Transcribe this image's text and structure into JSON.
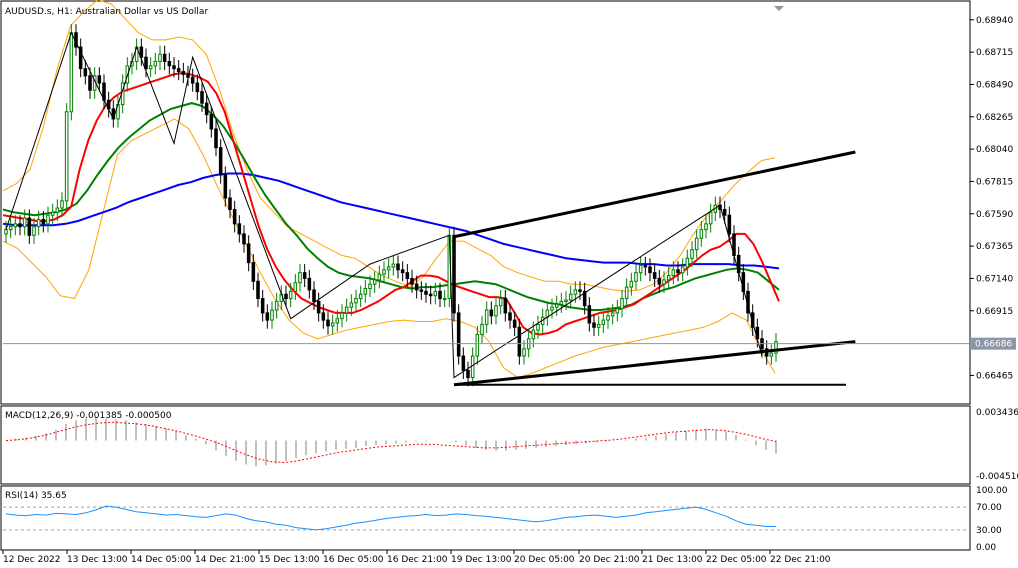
{
  "chart_data": [
    {
      "panel": "price",
      "type": "candlestick",
      "title": "AUDUSD.s, H1:  Australian Dollar vs US Dollar",
      "ylim": [
        0.6628,
        0.6905
      ],
      "y_ticks": [
        "0.68940",
        "0.68715",
        "0.68490",
        "0.68265",
        "0.68040",
        "0.67815",
        "0.67590",
        "0.67365",
        "0.67140",
        "0.66915",
        "0.66690",
        "0.66465"
      ],
      "current_price": "0.66686",
      "current_value": 0.66686,
      "colors": {
        "bull": "#008000",
        "bear": "#000000",
        "ma_fast": "#ff0000",
        "ma_mid": "#008000",
        "ma_slow": "#0000ff",
        "bands": "#ffa500",
        "trendline": "#000000",
        "price_line": "#8c96a6"
      },
      "close": [
        0.6748,
        0.675,
        0.6752,
        0.675,
        0.6756,
        0.6744,
        0.675,
        0.6755,
        0.6752,
        0.6758,
        0.676,
        0.6763,
        0.6768,
        0.683,
        0.6885,
        0.6875,
        0.686,
        0.6855,
        0.6845,
        0.6855,
        0.685,
        0.6838,
        0.6832,
        0.6825,
        0.6835,
        0.685,
        0.6862,
        0.6865,
        0.6875,
        0.6868,
        0.686,
        0.6862,
        0.6865,
        0.687,
        0.6865,
        0.6862,
        0.686,
        0.6858,
        0.6856,
        0.6854,
        0.685,
        0.6844,
        0.6836,
        0.6828,
        0.6818,
        0.6805,
        0.6786,
        0.677,
        0.6762,
        0.6752,
        0.6745,
        0.6738,
        0.6725,
        0.6712,
        0.67,
        0.669,
        0.6685,
        0.6692,
        0.6698,
        0.6703,
        0.67,
        0.6705,
        0.6711,
        0.6718,
        0.6714,
        0.6706,
        0.6698,
        0.669,
        0.6685,
        0.6681,
        0.6683,
        0.6686,
        0.669,
        0.6694,
        0.6697,
        0.67,
        0.6703,
        0.6707,
        0.671,
        0.6713,
        0.6717,
        0.672,
        0.6722,
        0.6724,
        0.672,
        0.6718,
        0.6714,
        0.671,
        0.6706,
        0.6705,
        0.6703,
        0.6702,
        0.6705,
        0.67,
        0.67,
        0.6744,
        0.669,
        0.666,
        0.665,
        0.6645,
        0.666,
        0.6675,
        0.6682,
        0.6692,
        0.6688,
        0.6695,
        0.67,
        0.669,
        0.6685,
        0.668,
        0.666,
        0.6665,
        0.6672,
        0.6678,
        0.6682,
        0.6687,
        0.6692,
        0.6694,
        0.6696,
        0.6698,
        0.6699,
        0.6703,
        0.6706,
        0.6705,
        0.6695,
        0.6683,
        0.668,
        0.6682,
        0.6685,
        0.6688,
        0.669,
        0.6693,
        0.67,
        0.6708,
        0.6712,
        0.6718,
        0.6723,
        0.6722,
        0.6718,
        0.6714,
        0.671,
        0.6713,
        0.6716,
        0.672,
        0.6718,
        0.6722,
        0.6728,
        0.6734,
        0.6742,
        0.6748,
        0.6752,
        0.676,
        0.6765,
        0.6762,
        0.6758,
        0.6745,
        0.673,
        0.6718,
        0.6705,
        0.669,
        0.668,
        0.6672,
        0.6665,
        0.666,
        0.6662,
        0.667
      ],
      "ma_fast": [
        0.6758,
        0.6757,
        0.6756,
        0.6755,
        0.6754,
        0.6754,
        0.6755,
        0.6758,
        0.6764,
        0.679,
        0.681,
        0.6824,
        0.6834,
        0.684,
        0.6844,
        0.6846,
        0.6848,
        0.685,
        0.6852,
        0.6854,
        0.6856,
        0.6857,
        0.6856,
        0.6854,
        0.6851,
        0.6843,
        0.683,
        0.681,
        0.679,
        0.677,
        0.675,
        0.6734,
        0.6722,
        0.6713,
        0.6706,
        0.67,
        0.6697,
        0.6694,
        0.6692,
        0.669,
        0.669,
        0.669,
        0.6692,
        0.6695,
        0.6698,
        0.6702,
        0.6706,
        0.6708,
        0.6712,
        0.6716,
        0.6716,
        0.6715,
        0.6712,
        0.6709,
        0.6707,
        0.6705,
        0.6703,
        0.6701,
        0.6701,
        0.67,
        0.669,
        0.668,
        0.6676,
        0.6675,
        0.6676,
        0.6678,
        0.6682,
        0.6684,
        0.6686,
        0.6688,
        0.669,
        0.6691,
        0.6692,
        0.6694,
        0.6696,
        0.67,
        0.6704,
        0.6708,
        0.6712,
        0.6716,
        0.672,
        0.6725,
        0.673,
        0.6734,
        0.6736,
        0.674,
        0.6745,
        0.6745,
        0.6738,
        0.6726,
        0.6712,
        0.6698
      ],
      "ma_mid": [
        0.6762,
        0.676,
        0.6759,
        0.6758,
        0.6759,
        0.676,
        0.6762,
        0.6766,
        0.6775,
        0.6786,
        0.6796,
        0.6805,
        0.6812,
        0.6818,
        0.6824,
        0.6828,
        0.6832,
        0.6834,
        0.6836,
        0.6834,
        0.6828,
        0.682,
        0.6809,
        0.6797,
        0.6784,
        0.6772,
        0.6762,
        0.6752,
        0.6744,
        0.6735,
        0.6728,
        0.6722,
        0.6718,
        0.6716,
        0.6715,
        0.6714,
        0.6712,
        0.671,
        0.6708,
        0.6707,
        0.6708,
        0.6708,
        0.6709,
        0.671,
        0.6711,
        0.6712,
        0.6711,
        0.671,
        0.6707,
        0.6704,
        0.6701,
        0.6699,
        0.6697,
        0.6696,
        0.6694,
        0.6693,
        0.6692,
        0.6692,
        0.6693,
        0.6694,
        0.6696,
        0.67,
        0.6703,
        0.6706,
        0.6708,
        0.6711,
        0.6714,
        0.6716,
        0.6718,
        0.672,
        0.6721,
        0.672,
        0.6718,
        0.6712,
        0.6706
      ],
      "ma_slow": [
        0.6752,
        0.6751,
        0.6751,
        0.6751,
        0.6751,
        0.6752,
        0.6754,
        0.6757,
        0.676,
        0.6763,
        0.6767,
        0.677,
        0.6773,
        0.6776,
        0.6779,
        0.6781,
        0.6784,
        0.6786,
        0.6787,
        0.6787,
        0.6786,
        0.6784,
        0.6782,
        0.6779,
        0.6776,
        0.6773,
        0.677,
        0.6767,
        0.6765,
        0.6763,
        0.6761,
        0.6759,
        0.6757,
        0.6755,
        0.6753,
        0.6751,
        0.6749,
        0.6747,
        0.6744,
        0.6741,
        0.6738,
        0.6736,
        0.6734,
        0.6732,
        0.673,
        0.6728,
        0.6727,
        0.6726,
        0.6725,
        0.6725,
        0.6725,
        0.6724,
        0.6724,
        0.6723,
        0.6723,
        0.6724,
        0.6724,
        0.6724,
        0.6724,
        0.6723,
        0.6723,
        0.6722,
        0.6721
      ],
      "band_upper": [
        0.6775,
        0.678,
        0.679,
        0.682,
        0.686,
        0.689,
        0.69,
        0.6908,
        0.6905,
        0.6895,
        0.6885,
        0.688,
        0.688,
        0.6882,
        0.688,
        0.687,
        0.6845,
        0.6815,
        0.679,
        0.677,
        0.676,
        0.675,
        0.6745,
        0.674,
        0.6735,
        0.673,
        0.6728,
        0.6722,
        0.6716,
        0.6712,
        0.6708,
        0.6715,
        0.6728,
        0.674,
        0.674,
        0.6735,
        0.673,
        0.6722,
        0.6718,
        0.6715,
        0.6712,
        0.6712,
        0.671,
        0.671,
        0.6708,
        0.6706,
        0.6705,
        0.6706,
        0.671,
        0.6718,
        0.673,
        0.6745,
        0.6758,
        0.6768,
        0.6779,
        0.6788,
        0.6796,
        0.6798
      ],
      "band_lower": [
        0.674,
        0.6735,
        0.6725,
        0.6715,
        0.6702,
        0.67,
        0.672,
        0.676,
        0.68,
        0.681,
        0.6815,
        0.682,
        0.6825,
        0.6818,
        0.68,
        0.6778,
        0.6758,
        0.6738,
        0.6718,
        0.67,
        0.6685,
        0.6676,
        0.6672,
        0.6675,
        0.6678,
        0.668,
        0.6682,
        0.6684,
        0.6685,
        0.6684,
        0.6684,
        0.6686,
        0.6684,
        0.668,
        0.667,
        0.6652,
        0.6645,
        0.6648,
        0.6652,
        0.6656,
        0.666,
        0.6663,
        0.6666,
        0.6668,
        0.667,
        0.6672,
        0.6674,
        0.6676,
        0.6678,
        0.668,
        0.6684,
        0.669,
        0.6685,
        0.6665,
        0.6648
      ]
    },
    {
      "panel": "macd",
      "type": "bar",
      "title": "MACD(12,26,9) -0.001385 -0.000500",
      "y_ticks": [
        "0.003436",
        "-0.004510"
      ],
      "ylim": [
        -0.00451,
        0.003436
      ],
      "colors": {
        "histogram": "#c0c0c0",
        "signal": "#ff0000"
      },
      "histogram": [
        0.0,
        0.0002,
        0.0003,
        0.0005,
        0.0008,
        0.0012,
        0.0018,
        0.0022,
        0.0024,
        0.0025,
        0.0024,
        0.0023,
        0.0022,
        0.002,
        0.0018,
        0.0016,
        0.0013,
        0.001,
        0.0006,
        0.0002,
        -0.0004,
        -0.0011,
        -0.0017,
        -0.0022,
        -0.0026,
        -0.0028,
        -0.0027,
        -0.0025,
        -0.0022,
        -0.0019,
        -0.0016,
        -0.0014,
        -0.0012,
        -0.001,
        -0.0009,
        -0.0008,
        -0.0006,
        -0.0005,
        -0.0004,
        -0.0003,
        -0.0002,
        -0.0001,
        -0.0001,
        0.0,
        0.0,
        -0.0002,
        -0.0005,
        -0.0008,
        -0.001,
        -0.0011,
        -0.0011,
        -0.001,
        -0.0009,
        -0.0008,
        -0.0007,
        -0.0006,
        -0.0005,
        -0.0004,
        -0.0003,
        -0.0002,
        -0.0001,
        0.0,
        0.0001,
        0.0002,
        0.0003,
        0.0005,
        0.0007,
        0.0009,
        0.0011,
        0.0012,
        0.0013,
        0.0012,
        0.001,
        0.0006,
        0.0001,
        -0.0005,
        -0.001,
        -0.0014
      ],
      "signal": [
        0.0,
        0.0001,
        0.0003,
        0.0006,
        0.001,
        0.0014,
        0.0017,
        0.0019,
        0.002,
        0.0019,
        0.0018,
        0.0016,
        0.0013,
        0.001,
        0.0006,
        0.0002,
        -0.0003,
        -0.0009,
        -0.0015,
        -0.002,
        -0.0023,
        -0.0024,
        -0.0022,
        -0.0019,
        -0.0016,
        -0.0013,
        -0.0011,
        -0.0009,
        -0.0007,
        -0.0006,
        -0.0005,
        -0.0004,
        -0.0004,
        -0.0005,
        -0.0006,
        -0.0007,
        -0.0008,
        -0.0008,
        -0.0007,
        -0.0006,
        -0.0005,
        -0.0004,
        -0.0003,
        -0.0002,
        -0.0001,
        0.0,
        0.0001,
        0.0003,
        0.0005,
        0.0007,
        0.0009,
        0.001,
        0.0011,
        0.0012,
        0.0011,
        0.0009,
        0.0006,
        0.0002,
        -0.0001
      ]
    },
    {
      "panel": "rsi",
      "type": "line",
      "title": "RSI(14) 35.65",
      "y_ticks": [
        "100.00",
        "70.00",
        "30.00",
        "0.00"
      ],
      "ylim": [
        0,
        100
      ],
      "levels": [
        70,
        30
      ],
      "colors": {
        "line": "#1e90ff",
        "levels": "#a0a0a0"
      },
      "values": [
        58,
        56,
        55,
        57,
        56,
        59,
        58,
        57,
        60,
        65,
        72,
        70,
        66,
        62,
        60,
        58,
        56,
        57,
        55,
        53,
        52,
        55,
        58,
        56,
        50,
        46,
        44,
        40,
        38,
        34,
        32,
        30,
        32,
        35,
        38,
        42,
        44,
        47,
        50,
        52,
        54,
        55,
        57,
        55,
        56,
        58,
        57,
        55,
        54,
        52,
        50,
        48,
        46,
        44,
        46,
        49,
        52,
        53,
        55,
        56,
        54,
        52,
        54,
        56,
        60,
        62,
        64,
        66,
        68,
        70,
        66,
        60,
        54,
        46,
        40,
        38,
        36,
        36
      ]
    }
  ],
  "x_ticks": [
    "12 Dec 2022",
    "13 Dec 13:00",
    "14 Dec 05:00",
    "14 Dec 21:00",
    "15 Dec 13:00",
    "16 Dec 05:00",
    "16 Dec 21:00",
    "19 Dec 13:00",
    "20 Dec 05:00",
    "20 Dec 21:00",
    "21 Dec 13:00",
    "22 Dec 05:00",
    "22 Dec 21:00"
  ]
}
